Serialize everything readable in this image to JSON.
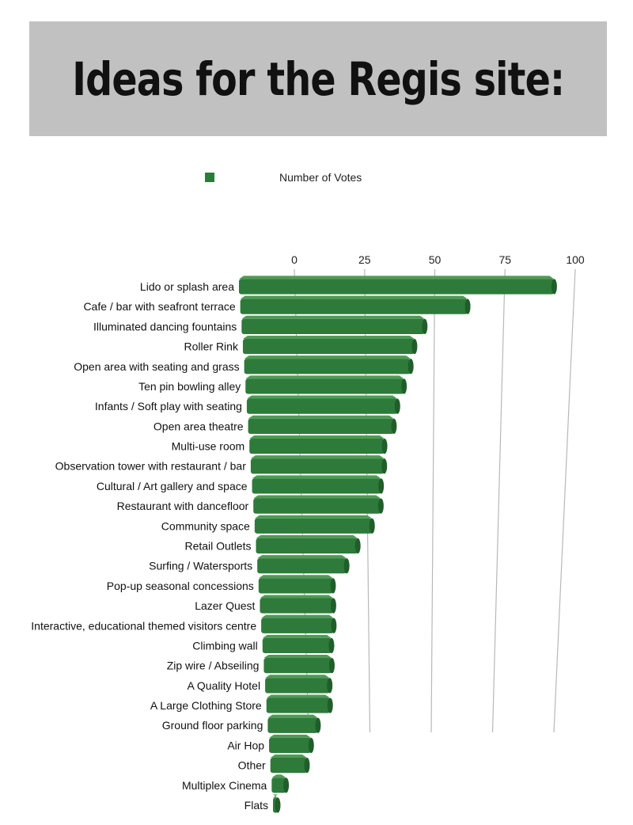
{
  "page": {
    "title": "Ideas for the Regis site:"
  },
  "legend": {
    "label": "Number of  Votes",
    "color": "#2e7a3a"
  },
  "chart_data": {
    "type": "bar",
    "orientation": "horizontal",
    "style": "3d",
    "title": "Ideas for the Regis site:",
    "xlim": [
      0,
      100
    ],
    "ticks": [
      "0",
      "25",
      "50",
      "75",
      "100"
    ],
    "grid": true,
    "legend_position": "top",
    "series": [
      {
        "name": "Number of  Votes",
        "color": "#2e7a3a"
      }
    ],
    "categories": [
      "Lido or splash area",
      "Cafe / bar with seafront terrace",
      "Illuminated dancing fountains",
      "Roller Rink",
      "Open area with seating and grass",
      "Ten pin bowling alley",
      "Infants / Soft play with seating",
      "Open area theatre",
      "Multi-use room",
      "Observation tower with restaurant / bar",
      "Cultural / Art gallery and space",
      "Restaurant with dancefloor",
      "Community space",
      "Retail Outlets",
      "Surfing / Watersports",
      "Pop-up seasonal concessions",
      "Lazer Quest",
      "Interactive, educational themed visitors centre",
      "Climbing wall",
      "Zip wire / Abseiling",
      "A Quality Hotel",
      "A Large Clothing Store",
      "Ground floor parking",
      "Air Hop",
      "Other",
      "Multiplex Cinema",
      "Flats"
    ],
    "values": [
      96,
      70,
      57,
      54,
      53,
      51,
      49,
      48,
      45,
      45,
      44,
      44,
      41,
      36,
      32,
      27,
      27,
      27,
      26,
      26,
      25,
      25,
      20,
      17,
      15,
      6,
      2
    ]
  }
}
